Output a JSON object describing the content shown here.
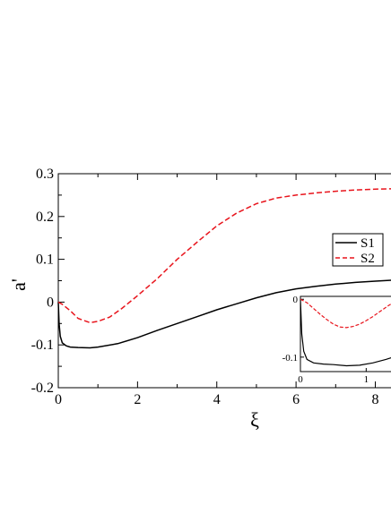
{
  "chart_data": {
    "type": "line",
    "xlabel": "ξ",
    "ylabel": "a'",
    "xlim": [
      0,
      8.6
    ],
    "ylim": [
      -0.2,
      0.3
    ],
    "xticks": [
      "0",
      "2",
      "4",
      "6",
      "8"
    ],
    "xtick_values": [
      0,
      2,
      4,
      6,
      8
    ],
    "yticks": [
      "-0.2",
      "-0.1",
      "0",
      "0.1",
      "0.2",
      "0.3"
    ],
    "ytick_values": [
      -0.2,
      -0.1,
      0,
      0.1,
      0.2,
      0.3
    ],
    "legend_position": "right",
    "series": [
      {
        "name": "S1",
        "color": "#000000",
        "style": "solid",
        "x": [
          0,
          0.02,
          0.05,
          0.1,
          0.2,
          0.3,
          0.5,
          0.8,
          1.0,
          1.5,
          2.0,
          2.5,
          3.0,
          3.5,
          4.0,
          4.5,
          5.0,
          5.5,
          6.0,
          6.5,
          7.0,
          7.5,
          8.0,
          8.6
        ],
        "y": [
          0.0,
          -0.05,
          -0.08,
          -0.095,
          -0.102,
          -0.105,
          -0.106,
          -0.107,
          -0.105,
          -0.097,
          -0.083,
          -0.066,
          -0.05,
          -0.034,
          -0.018,
          -0.004,
          0.01,
          0.022,
          0.031,
          0.037,
          0.042,
          0.046,
          0.049,
          0.052
        ]
      },
      {
        "name": "S2",
        "color": "#e8141c",
        "style": "dashed",
        "x": [
          0,
          0.1,
          0.3,
          0.5,
          0.8,
          1.0,
          1.3,
          1.6,
          2.0,
          2.5,
          3.0,
          3.5,
          4.0,
          4.5,
          5.0,
          5.5,
          6.0,
          6.5,
          7.0,
          7.5,
          8.0,
          8.6
        ],
        "y": [
          0.0,
          -0.005,
          -0.02,
          -0.038,
          -0.048,
          -0.045,
          -0.035,
          -0.015,
          0.015,
          0.055,
          0.1,
          0.14,
          0.178,
          0.208,
          0.23,
          0.243,
          0.25,
          0.255,
          0.259,
          0.262,
          0.264,
          0.265
        ]
      }
    ],
    "inset": {
      "xlim": [
        0,
        1.5
      ],
      "ylim": [
        -0.125,
        0.005
      ],
      "xticks": [
        "0",
        "1"
      ],
      "xtick_values": [
        0,
        1
      ],
      "yticks": [
        "-0.1",
        "0"
      ],
      "ytick_values": [
        -0.1,
        0
      ],
      "series": [
        {
          "name": "S1",
          "x": [
            0,
            0.02,
            0.05,
            0.1,
            0.2,
            0.35,
            0.5,
            0.7,
            0.9,
            1.1,
            1.3,
            1.5
          ],
          "y": [
            0.0,
            -0.06,
            -0.09,
            -0.104,
            -0.11,
            -0.112,
            -0.113,
            -0.115,
            -0.114,
            -0.11,
            -0.104,
            -0.097
          ]
        },
        {
          "name": "S2",
          "x": [
            0,
            0.1,
            0.2,
            0.3,
            0.4,
            0.5,
            0.6,
            0.7,
            0.8,
            0.9,
            1.0,
            1.1,
            1.2,
            1.35,
            1.5
          ],
          "y": [
            0.0,
            -0.006,
            -0.016,
            -0.026,
            -0.035,
            -0.043,
            -0.048,
            -0.049,
            -0.047,
            -0.043,
            -0.037,
            -0.03,
            -0.022,
            -0.01,
            0.0
          ]
        }
      ]
    }
  }
}
